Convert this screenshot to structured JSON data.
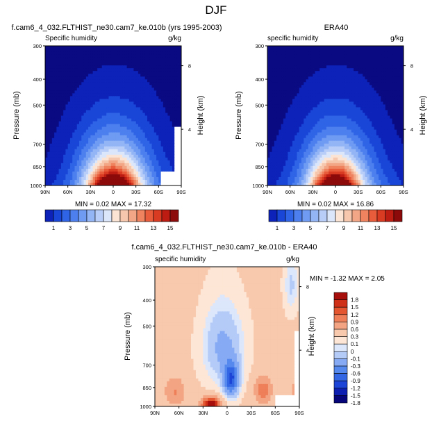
{
  "figure": {
    "title": "DJF",
    "colors": {
      "diverging_palette": [
        "#0a0a82",
        "#0c22b8",
        "#1a46d8",
        "#2f64e6",
        "#4d80ee",
        "#6f9bf3",
        "#93b5f6",
        "#b8cef8",
        "#dbe6fb",
        "#fbe4d4",
        "#f7c7ad",
        "#f3a685",
        "#ef835f",
        "#e85c3b",
        "#d83a22",
        "#bd1c12",
        "#8c0a0a"
      ],
      "difference_palette": [
        "#06067a",
        "#0c1fb0",
        "#1c44d6",
        "#3367e4",
        "#5689ee",
        "#86aaf4",
        "#b4cbf8",
        "#dde7fb",
        "#fde6d5",
        "#f8c9ad",
        "#f3a583",
        "#ee7f58",
        "#e4562f",
        "#cf3018",
        "#a60f0c"
      ]
    }
  },
  "chart_data": [
    {
      "type": "heatmap",
      "title": "f.cam6_4_032.FLTHIST_ne30.cam7_ke.010b (yrs 1995-2003)",
      "left_label": "Specific humidity",
      "right_label": "g/kg",
      "xlabel": "",
      "ylabel": "Pressure (mb)",
      "ylabel_right": "Height (km)",
      "x_ticks": [
        "90N",
        "60N",
        "30N",
        "0",
        "30S",
        "60S",
        "90S"
      ],
      "y_ticks": [
        "300",
        "400",
        "500",
        "700",
        "850",
        "1000"
      ],
      "y_right_ticks": [
        "8",
        "4"
      ],
      "y_scale": "log",
      "xlim": [
        -90,
        90
      ],
      "ylim": [
        1000,
        300
      ],
      "min_max": "MIN =  0.02  MAX =  17.32",
      "colorbar": {
        "labels": [
          "1",
          "3",
          "5",
          "7",
          "9",
          "11",
          "13",
          "15"
        ]
      },
      "model": {
        "peak": 17.32,
        "peak_lat": 0,
        "width": 33,
        "scale_height": 2.0
      }
    },
    {
      "type": "heatmap",
      "title": "ERA40",
      "left_label": "specific humidity",
      "right_label": "g/kg",
      "xlabel": "",
      "ylabel": "Pressure (mb)",
      "ylabel_right": "Height (km)",
      "x_ticks": [
        "90N",
        "60N",
        "30N",
        "0",
        "30S",
        "60S",
        "90S"
      ],
      "y_ticks": [
        "300",
        "400",
        "500",
        "700",
        "850",
        "1000"
      ],
      "y_right_ticks": [
        "8",
        "4"
      ],
      "y_scale": "log",
      "xlim": [
        -90,
        90
      ],
      "ylim": [
        1000,
        300
      ],
      "min_max": "MIN =  0.02  MAX =  16.86",
      "colorbar": {
        "labels": [
          "1",
          "3",
          "5",
          "7",
          "9",
          "11",
          "13",
          "15"
        ]
      },
      "model": {
        "peak": 16.86,
        "peak_lat": 0,
        "width": 32,
        "scale_height": 2.0
      }
    },
    {
      "type": "heatmap",
      "title": "f.cam6_4_032.FLTHIST_ne30.cam7_ke.010b - ERA40",
      "left_label": "specific humidity",
      "right_label": "g/kg",
      "xlabel": "",
      "ylabel": "Pressure (mb)",
      "ylabel_right": "Height (km)",
      "x_ticks": [
        "90N",
        "60N",
        "30N",
        "0",
        "30S",
        "60S",
        "90S"
      ],
      "y_ticks": [
        "300",
        "400",
        "500",
        "700",
        "850",
        "1000"
      ],
      "y_right_ticks": [
        "8",
        "4"
      ],
      "y_scale": "log",
      "xlim": [
        -90,
        90
      ],
      "ylim": [
        1000,
        300
      ],
      "min_max": "MIN = -1.32  MAX =  2.05",
      "colorbar": {
        "labels": [
          "1.8",
          "1.5",
          "1.2",
          "0.9",
          "0.6",
          "0.3",
          "0.1",
          "0",
          "-0.1",
          "-0.3",
          "-0.6",
          "-0.9",
          "-1.2",
          "-1.5",
          "-1.8"
        ]
      },
      "min": -1.32,
      "max": 2.05
    }
  ]
}
